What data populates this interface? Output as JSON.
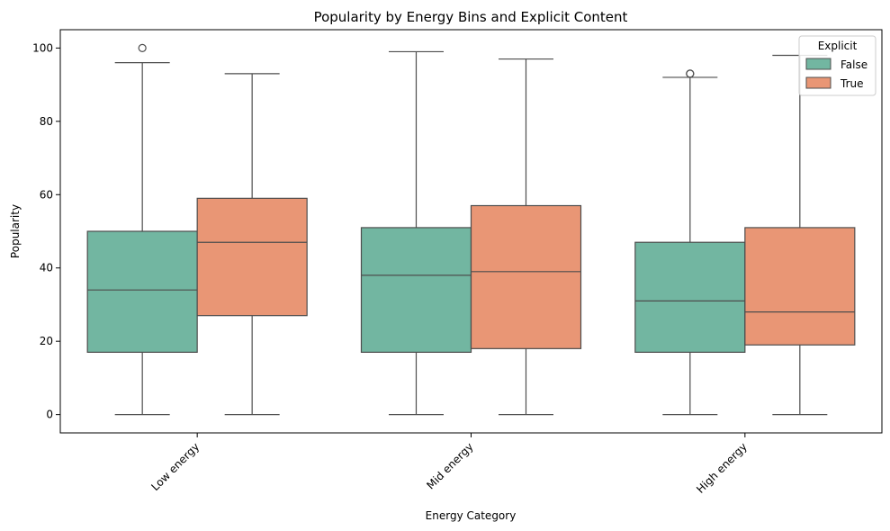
{
  "chart_data": {
    "type": "box",
    "title": "Popularity by Energy Bins and Explicit Content",
    "xlabel": "Energy Category",
    "ylabel": "Popularity",
    "ylim": [
      -5,
      105
    ],
    "yticks": [
      0,
      20,
      40,
      60,
      80,
      100
    ],
    "categories": [
      "Low energy",
      "Mid energy",
      "High energy"
    ],
    "legend": {
      "title": "Explicit",
      "placement": "top-right"
    },
    "grid": false,
    "series": [
      {
        "name": "False",
        "color": "#72b6a1",
        "boxes": [
          {
            "whisker_low": 0,
            "q1": 17,
            "median": 34,
            "q3": 50,
            "whisker_high": 96,
            "outliers": [
              100
            ]
          },
          {
            "whisker_low": 0,
            "q1": 17,
            "median": 38,
            "q3": 51,
            "whisker_high": 99,
            "outliers": []
          },
          {
            "whisker_low": 0,
            "q1": 17,
            "median": 31,
            "q3": 47,
            "whisker_high": 92,
            "outliers": [
              93,
              93
            ]
          }
        ]
      },
      {
        "name": "True",
        "color": "#e99675",
        "boxes": [
          {
            "whisker_low": 0,
            "q1": 27,
            "median": 47,
            "q3": 59,
            "whisker_high": 93,
            "outliers": []
          },
          {
            "whisker_low": 0,
            "q1": 18,
            "median": 39,
            "q3": 57,
            "whisker_high": 97,
            "outliers": []
          },
          {
            "whisker_low": 0,
            "q1": 19,
            "median": 28,
            "q3": 51,
            "whisker_high": 98,
            "outliers": []
          }
        ]
      }
    ]
  }
}
